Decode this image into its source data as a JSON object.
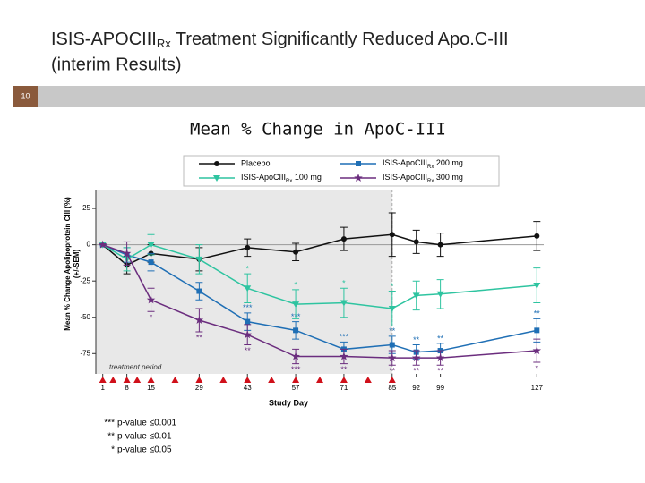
{
  "header": {
    "title_line1": "ISIS-APOCIII",
    "title_sub": "Rx",
    "title_rest": " Treatment Significantly Reduced Apo.C-III",
    "title_line2": "(interim Results)",
    "page_number": "10"
  },
  "chart_data": {
    "type": "line",
    "title": "Mean % Change in ApoC-III",
    "x_label": "Study Day",
    "y_label": [
      "Mean % Change Apolipoprotein CIII (%)",
      "(+/-SEM)"
    ],
    "annotation": "treatment period",
    "shade_to": 85,
    "hline": 0,
    "xlim": [
      -1,
      129
    ],
    "xticks": [
      1,
      8,
      15,
      29,
      43,
      57,
      71,
      85,
      92,
      99,
      127
    ],
    "ylim": [
      -89,
      38
    ],
    "yticks": [
      25,
      0,
      -25,
      -50,
      -75
    ],
    "dose_days": [
      1,
      4,
      8,
      11,
      15,
      22,
      29,
      36,
      43,
      50,
      57,
      64,
      71,
      78,
      85
    ],
    "x": [
      1,
      8,
      15,
      29,
      43,
      57,
      71,
      85,
      92,
      99,
      127
    ],
    "series": [
      {
        "name": "Placebo",
        "color": "#111111",
        "marker": "circle",
        "values": [
          0,
          -14,
          -6,
          -10,
          -2,
          -5,
          4,
          7,
          2,
          0,
          6
        ],
        "errors": [
          0,
          6,
          6,
          8,
          6,
          6,
          8,
          15,
          8,
          8,
          10
        ],
        "value_labels": [
          null,
          null,
          null,
          null,
          null,
          null,
          null,
          null,
          null,
          null,
          null
        ],
        "label_position": "above"
      },
      {
        "name": [
          "ISIS-ApoCIII",
          "Rx",
          " 200 mg"
        ],
        "color": "#1f6fb5",
        "marker": "square",
        "values": [
          0,
          -7,
          -12,
          -32,
          -53,
          -59,
          -72,
          -69,
          -74,
          -73,
          -59
        ],
        "errors": [
          0,
          5,
          6,
          6,
          6,
          6,
          5,
          6,
          5,
          5,
          8
        ],
        "value_labels": [
          null,
          null,
          null,
          null,
          "***",
          "***",
          "***",
          "**",
          "**",
          "**",
          "**"
        ],
        "label_position": "above"
      },
      {
        "name": [
          "ISIS-ApoCIII",
          "Rx",
          " 100 mg"
        ],
        "color": "#2ec4a0",
        "marker": "triangle",
        "values": [
          0,
          -10,
          0,
          -10,
          -30,
          -41,
          -40,
          -44,
          -35,
          -34,
          -28
        ],
        "errors": [
          0,
          8,
          7,
          10,
          10,
          10,
          10,
          12,
          10,
          10,
          12
        ],
        "value_labels": [
          null,
          null,
          null,
          null,
          "*",
          "*",
          "*",
          "*",
          null,
          null,
          null
        ],
        "label_position": "above"
      },
      {
        "name": [
          "ISIS-ApoCIII",
          "Rx",
          " 300 mg"
        ],
        "color": "#6b2d7e",
        "marker": "star",
        "values": [
          0,
          -6,
          -38,
          -52,
          -62,
          -77,
          -77,
          -78,
          -78,
          -78,
          -73
        ],
        "errors": [
          0,
          8,
          8,
          8,
          7,
          5,
          5,
          5,
          5,
          5,
          8
        ],
        "value_labels": [
          null,
          null,
          "*",
          "**",
          "**",
          "***",
          "**",
          "**",
          "**",
          "**",
          "*"
        ],
        "label_position": "below"
      }
    ]
  },
  "p_value_key": [
    {
      "stars": "***",
      "text": "p-value  ≤0.001"
    },
    {
      "stars": "**",
      "text": "p-value  ≤0.01"
    },
    {
      "stars": "*",
      "text": "p-value  ≤0.05"
    }
  ]
}
